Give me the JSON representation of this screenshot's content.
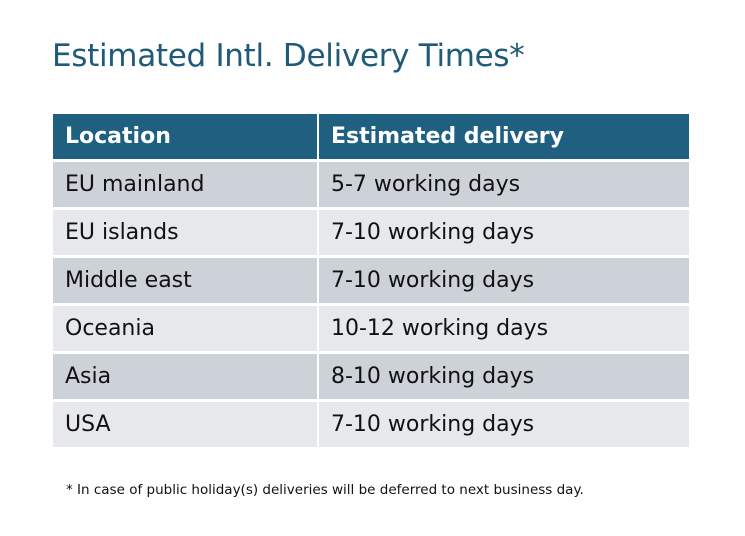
{
  "title": "Estimated Intl. Delivery Times*",
  "table": {
    "headers": [
      "Location",
      "Estimated delivery"
    ],
    "rows": [
      [
        "EU mainland",
        "5-7 working days"
      ],
      [
        "EU islands",
        "7-10 working days"
      ],
      [
        "Middle east",
        "7-10 working days"
      ],
      [
        "Oceania",
        "10-12 working days"
      ],
      [
        "Asia",
        "8-10 working days"
      ],
      [
        "USA",
        "7-10 working days"
      ]
    ]
  },
  "footnote": "* In case of public holiday(s) deliveries will be deferred to next business day.",
  "colors": {
    "header": "#1f6080",
    "row_dark": "#cdd1d8",
    "row_light": "#e6e8eb",
    "title": "#1f5a78"
  }
}
